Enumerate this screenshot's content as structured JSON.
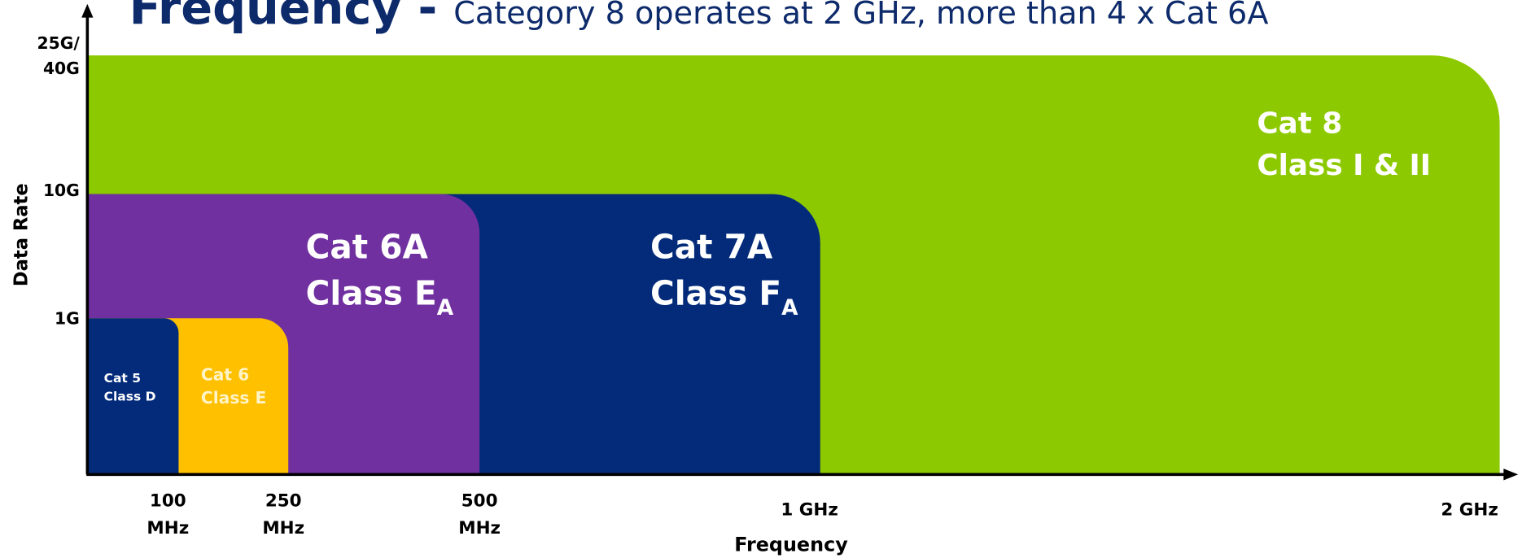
{
  "title": {
    "main": "Frequency - ",
    "sub": "Category 8 operates at 2 GHz, more than 4 x Cat 6A"
  },
  "y_axis": {
    "label": "Data Rate",
    "ticks": [
      {
        "lines": [
          "25G/",
          "40G"
        ]
      },
      {
        "lines": [
          "10G"
        ]
      },
      {
        "lines": [
          "1G"
        ]
      }
    ]
  },
  "x_axis": {
    "label": "Frequency",
    "ticks": [
      {
        "lines": [
          "100",
          "MHz"
        ]
      },
      {
        "lines": [
          "250",
          "MHz"
        ]
      },
      {
        "lines": [
          "500",
          "MHz"
        ]
      },
      {
        "lines": [
          "1 GHz"
        ]
      },
      {
        "lines": [
          "2 GHz"
        ]
      }
    ]
  },
  "regions": [
    {
      "line1": "Cat 8",
      "line2": "Class I & II",
      "subscript": null
    },
    {
      "line1": "Cat 7A",
      "line2": "Class F",
      "subscript": "A"
    },
    {
      "line1": "Cat 6A",
      "line2": "Class E",
      "subscript": "A"
    },
    {
      "line1": "Cat 6",
      "line2": "Class E",
      "subscript": null
    },
    {
      "line1": "Cat 5",
      "line2": "Class D",
      "subscript": null
    }
  ]
}
